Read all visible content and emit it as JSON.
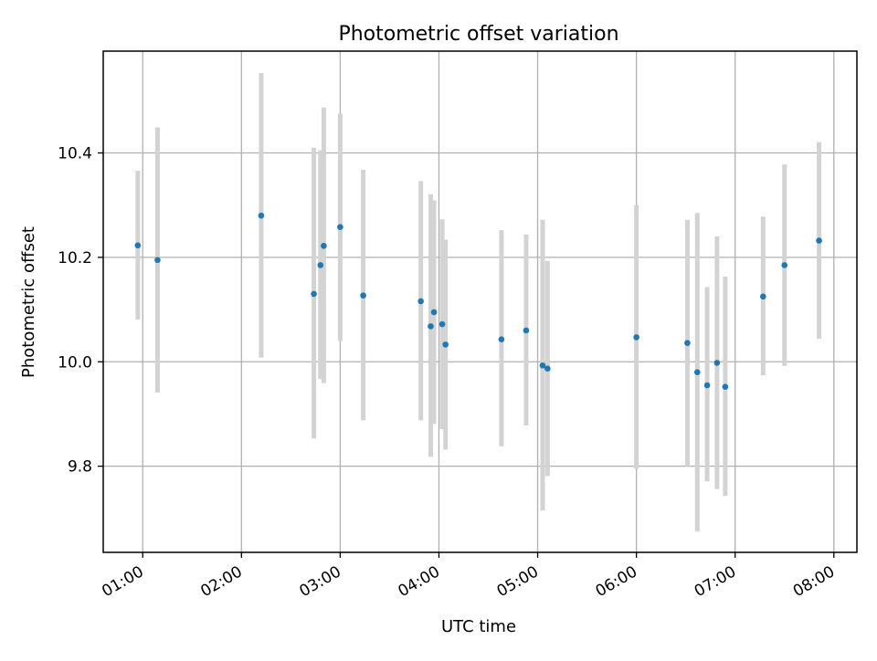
{
  "chart_data": {
    "type": "scatter",
    "title": "Photometric offset variation",
    "xlabel": "UTC time",
    "ylabel": "Photometric offset",
    "x_axis_type": "time",
    "xlim": [
      "00:36",
      "08:14"
    ],
    "ylim": [
      9.635,
      10.595
    ],
    "grid": true,
    "x_ticks": [
      "01:00",
      "02:00",
      "03:00",
      "04:00",
      "05:00",
      "06:00",
      "07:00",
      "08:00"
    ],
    "y_ticks": [
      "9.8",
      "10.0",
      "10.2",
      "10.4"
    ],
    "colors": {
      "point": "#1f77b4",
      "error_bar": "#d3d3d3",
      "grid": "#b0b0b0",
      "frame": "#000000"
    },
    "points": [
      {
        "time": "00:57",
        "y": 10.223,
        "low": 10.081,
        "high": 10.366
      },
      {
        "time": "01:09",
        "y": 10.195,
        "low": 9.941,
        "high": 10.449
      },
      {
        "time": "02:12",
        "y": 10.28,
        "low": 10.008,
        "high": 10.553
      },
      {
        "time": "02:44",
        "y": 10.13,
        "low": 9.853,
        "high": 10.41
      },
      {
        "time": "02:48",
        "y": 10.185,
        "low": 9.967,
        "high": 10.405
      },
      {
        "time": "02:50",
        "y": 10.222,
        "low": 9.959,
        "high": 10.487
      },
      {
        "time": "03:00",
        "y": 10.258,
        "low": 10.04,
        "high": 10.475
      },
      {
        "time": "03:14",
        "y": 10.127,
        "low": 9.888,
        "high": 10.368
      },
      {
        "time": "03:49",
        "y": 10.116,
        "low": 9.888,
        "high": 10.346
      },
      {
        "time": "03:55",
        "y": 10.068,
        "low": 9.818,
        "high": 10.321
      },
      {
        "time": "03:57",
        "y": 10.095,
        "low": 9.881,
        "high": 10.309
      },
      {
        "time": "04:02",
        "y": 10.072,
        "low": 9.871,
        "high": 10.273
      },
      {
        "time": "04:04",
        "y": 10.033,
        "low": 9.832,
        "high": 10.234
      },
      {
        "time": "04:38",
        "y": 10.043,
        "low": 9.838,
        "high": 10.252
      },
      {
        "time": "04:53",
        "y": 10.06,
        "low": 9.878,
        "high": 10.244
      },
      {
        "time": "05:03",
        "y": 9.993,
        "low": 9.715,
        "high": 10.272
      },
      {
        "time": "05:06",
        "y": 9.987,
        "low": 9.781,
        "high": 10.193
      },
      {
        "time": "06:00",
        "y": 10.047,
        "low": 9.795,
        "high": 10.3
      },
      {
        "time": "06:31",
        "y": 10.036,
        "low": 9.8,
        "high": 10.272
      },
      {
        "time": "06:37",
        "y": 9.98,
        "low": 9.675,
        "high": 10.285
      },
      {
        "time": "06:43",
        "y": 9.955,
        "low": 9.771,
        "high": 10.143
      },
      {
        "time": "06:49",
        "y": 9.998,
        "low": 9.756,
        "high": 10.24
      },
      {
        "time": "06:54",
        "y": 9.952,
        "low": 9.743,
        "high": 10.163
      },
      {
        "time": "07:17",
        "y": 10.125,
        "low": 9.974,
        "high": 10.278
      },
      {
        "time": "07:30",
        "y": 10.185,
        "low": 9.992,
        "high": 10.378
      },
      {
        "time": "07:51",
        "y": 10.232,
        "low": 10.044,
        "high": 10.421
      }
    ]
  }
}
